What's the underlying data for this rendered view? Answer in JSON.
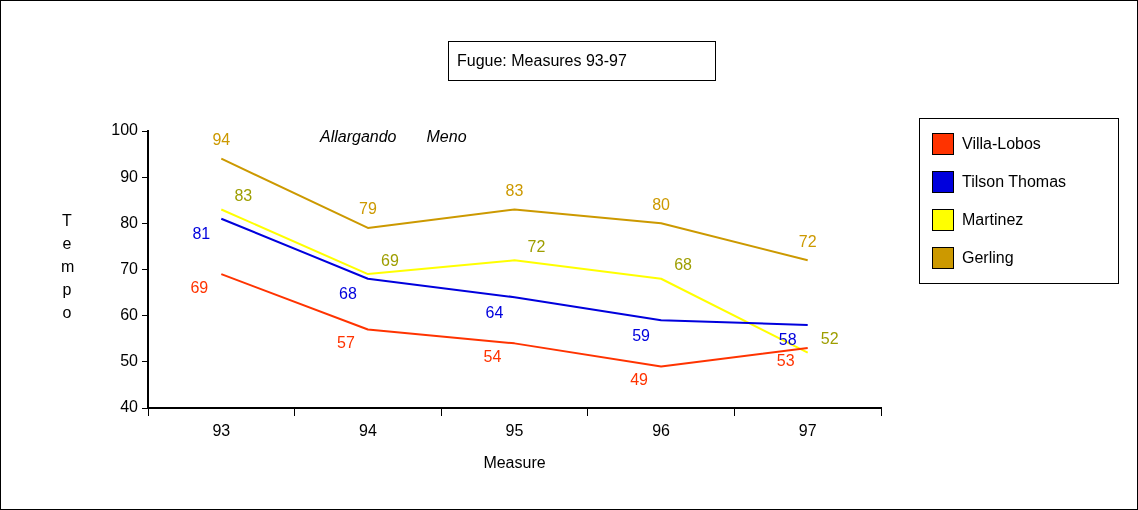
{
  "chart_data": {
    "type": "line",
    "title": "Fugue: Measures 93-97",
    "xlabel": "Measure",
    "ylabel": "Tempo",
    "categories": [
      "93",
      "94",
      "95",
      "96",
      "97"
    ],
    "series": [
      {
        "name": "Villa-Lobos",
        "color": "#ff3300",
        "values": [
          69,
          57,
          54,
          49,
          53
        ]
      },
      {
        "name": "Tilson Thomas",
        "color": "#0000dd",
        "values": [
          81,
          68,
          64,
          59,
          58
        ]
      },
      {
        "name": "Martinez",
        "color": "#ffff00",
        "values": [
          83,
          69,
          72,
          68,
          52
        ]
      },
      {
        "name": "Gerling",
        "color": "#cc9900",
        "values": [
          94,
          79,
          83,
          80,
          72
        ]
      }
    ],
    "ylim": [
      40,
      100
    ],
    "yticks": [
      40,
      50,
      60,
      70,
      80,
      90,
      100
    ],
    "grid": false,
    "legend": "right",
    "marker": "none",
    "line_style": "solid",
    "data_labels": true,
    "annotations": [
      "Allargando",
      "Meno"
    ]
  }
}
